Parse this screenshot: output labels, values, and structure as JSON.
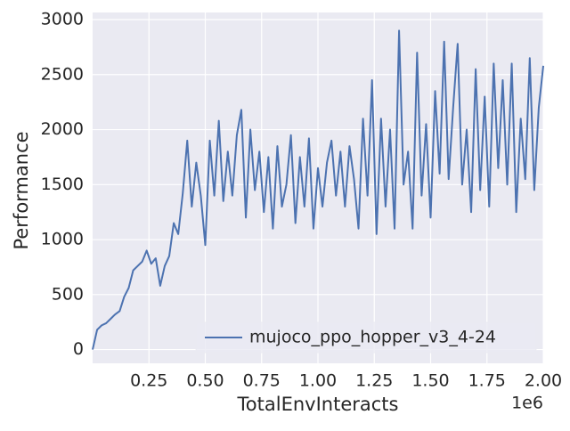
{
  "chart_data": {
    "type": "line",
    "xlabel": "TotalEnvInteracts",
    "ylabel": "Performance",
    "x_offset_label": "1e6",
    "xlim": [
      0,
      2000000
    ],
    "ylim": [
      -125,
      3065
    ],
    "xticks": [
      {
        "value": 250000,
        "label": "0.25"
      },
      {
        "value": 500000,
        "label": "0.50"
      },
      {
        "value": 750000,
        "label": "0.75"
      },
      {
        "value": 1000000,
        "label": "1.00"
      },
      {
        "value": 1250000,
        "label": "1.25"
      },
      {
        "value": 1500000,
        "label": "1.50"
      },
      {
        "value": 1750000,
        "label": "1.75"
      },
      {
        "value": 2000000,
        "label": "2.00"
      }
    ],
    "yticks": [
      0,
      500,
      1000,
      1500,
      2000,
      2500,
      3000
    ],
    "grid": true,
    "legend_position": "lower-right",
    "x": [
      0,
      20000,
      40000,
      60000,
      80000,
      100000,
      120000,
      140000,
      160000,
      180000,
      200000,
      220000,
      240000,
      260000,
      280000,
      300000,
      320000,
      340000,
      360000,
      380000,
      400000,
      420000,
      440000,
      460000,
      480000,
      500000,
      520000,
      540000,
      560000,
      580000,
      600000,
      620000,
      640000,
      660000,
      680000,
      700000,
      720000,
      740000,
      760000,
      780000,
      800000,
      820000,
      840000,
      860000,
      880000,
      900000,
      920000,
      940000,
      960000,
      980000,
      1000000,
      1020000,
      1040000,
      1060000,
      1080000,
      1100000,
      1120000,
      1140000,
      1160000,
      1180000,
      1200000,
      1220000,
      1240000,
      1260000,
      1280000,
      1300000,
      1320000,
      1340000,
      1360000,
      1380000,
      1400000,
      1420000,
      1440000,
      1460000,
      1480000,
      1500000,
      1520000,
      1540000,
      1560000,
      1580000,
      1600000,
      1620000,
      1640000,
      1660000,
      1680000,
      1700000,
      1720000,
      1740000,
      1760000,
      1780000,
      1800000,
      1820000,
      1840000,
      1860000,
      1880000,
      1900000,
      1920000,
      1940000,
      1960000,
      1980000,
      2000000
    ],
    "series": [
      {
        "name": "mujoco_ppo_hopper_v3_4-24",
        "color": "#4c72b0",
        "values": [
          0,
          180,
          220,
          240,
          280,
          320,
          350,
          480,
          560,
          720,
          760,
          800,
          900,
          780,
          830,
          580,
          760,
          850,
          1150,
          1050,
          1420,
          1900,
          1300,
          1700,
          1400,
          950,
          1900,
          1400,
          2080,
          1350,
          1800,
          1400,
          1950,
          2180,
          1200,
          2000,
          1450,
          1800,
          1250,
          1750,
          1100,
          1850,
          1300,
          1500,
          1950,
          1150,
          1750,
          1300,
          1920,
          1100,
          1650,
          1300,
          1700,
          1900,
          1400,
          1800,
          1300,
          1850,
          1550,
          1100,
          2100,
          1400,
          2450,
          1050,
          2100,
          1300,
          2000,
          1100,
          2900,
          1500,
          1800,
          1100,
          2700,
          1400,
          2050,
          1200,
          2350,
          1600,
          2800,
          1550,
          2200,
          2780,
          1500,
          2000,
          1250,
          2550,
          1450,
          2300,
          1300,
          2600,
          1650,
          2450,
          1500,
          2600,
          1250,
          2100,
          1550,
          2650,
          1450,
          2200,
          2580
        ]
      }
    ]
  }
}
